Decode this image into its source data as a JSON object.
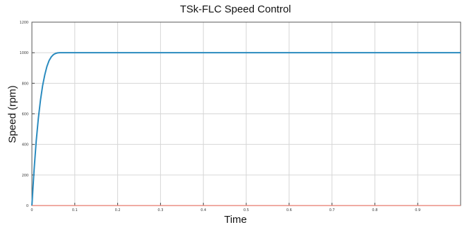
{
  "chart_data": {
    "type": "line",
    "title": "TSk-FLC Speed Control",
    "xlabel": "Time",
    "ylabel": "Speed (rpm)",
    "xlim": [
      0,
      1
    ],
    "ylim": [
      0,
      1200
    ],
    "x_ticks": [
      "0",
      "0.1",
      "0.2",
      "0.3",
      "0.4",
      "0.5",
      "0.6",
      "0.7",
      "0.8",
      "0.9",
      "1"
    ],
    "y_ticks": [
      "0",
      "200",
      "400",
      "600",
      "800",
      "1000",
      "1200"
    ],
    "grid": true,
    "series": [
      {
        "color": "#2a8bbf",
        "x": [
          0,
          0.005,
          0.01,
          0.015,
          0.02,
          0.025,
          0.03,
          0.035,
          0.04,
          0.045,
          0.05,
          0.055,
          0.06,
          0.065,
          0.07,
          1.0
        ],
        "y": [
          0,
          230,
          420,
          570,
          690,
          785,
          855,
          910,
          948,
          972,
          987,
          995,
          999,
          1000,
          1000,
          1000
        ]
      },
      {
        "color": "#e8796b",
        "x": [
          0,
          1.0
        ],
        "y": [
          0,
          0
        ]
      }
    ]
  }
}
